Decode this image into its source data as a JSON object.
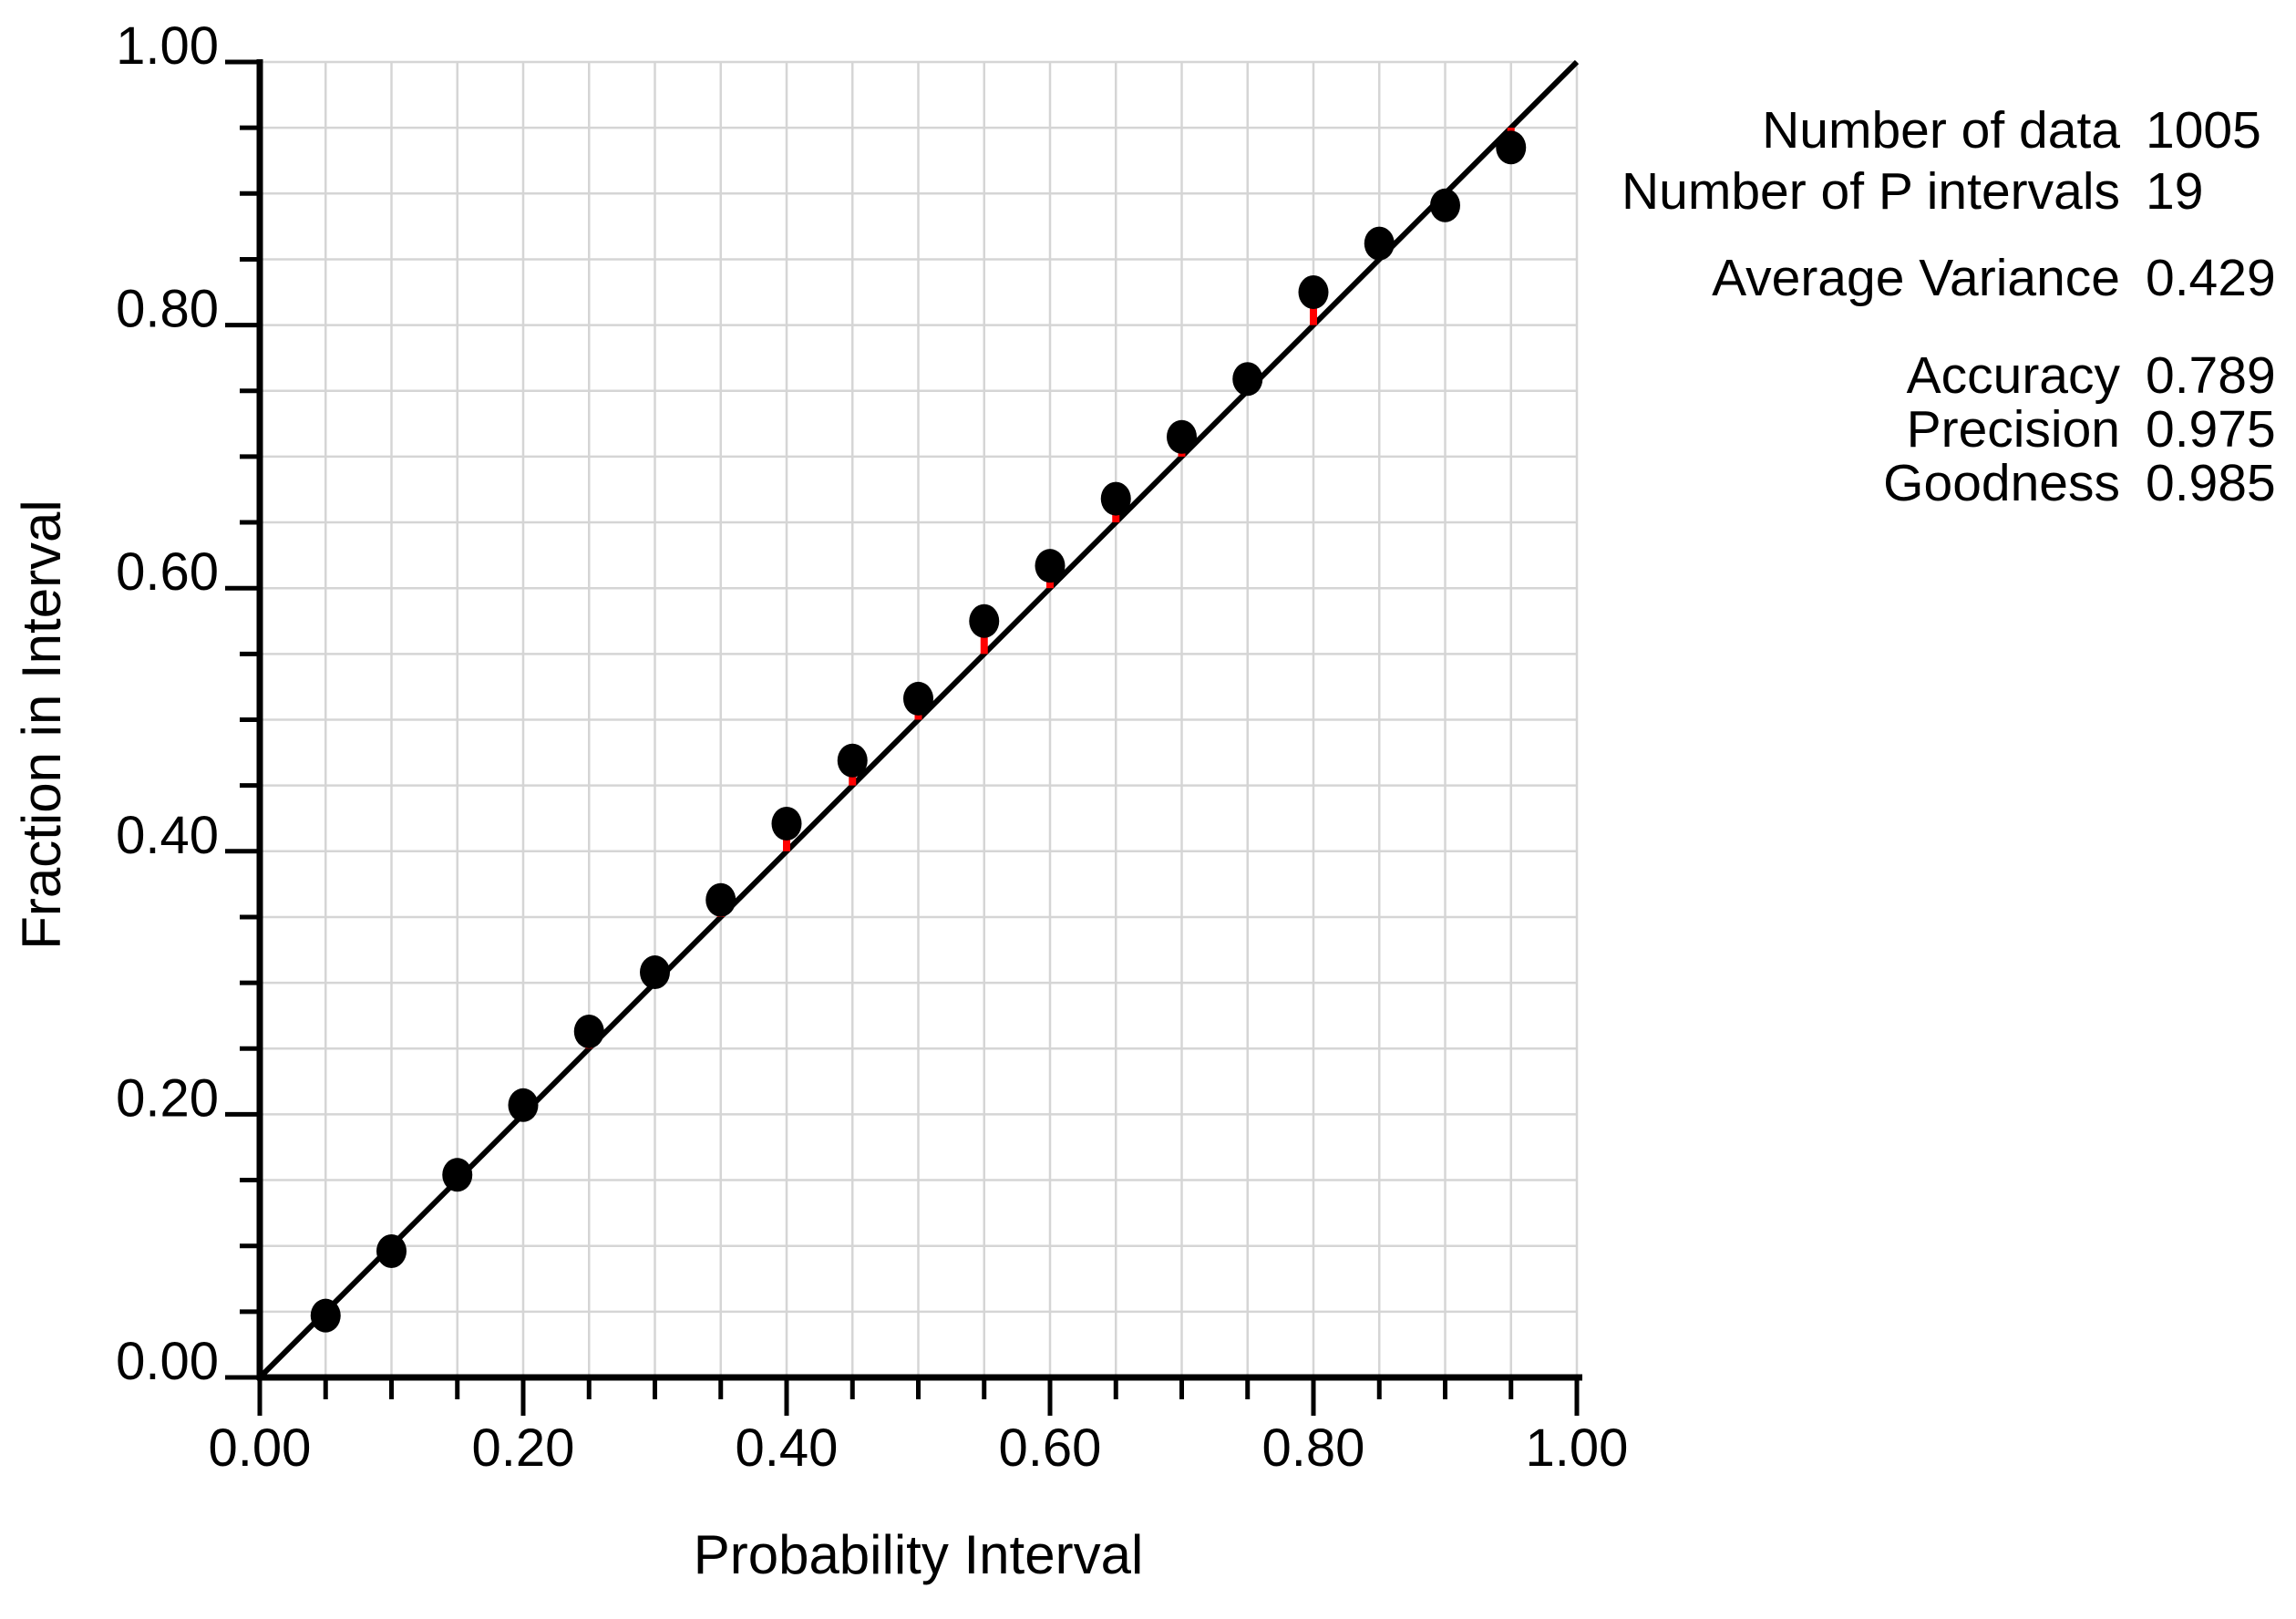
{
  "chart_data": {
    "type": "scatter",
    "title": "",
    "xlabel": "Probability Interval",
    "ylabel": "Fraction in Interval",
    "xlim": [
      0.0,
      1.0
    ],
    "ylim": [
      0.0,
      1.0
    ],
    "grid": true,
    "grid_step": 0.05,
    "minor_tick_step": 0.05,
    "major_tick_step": 0.2,
    "x_tick_values": [
      0.0,
      0.2,
      0.4,
      0.6,
      0.8,
      1.0
    ],
    "x_tick_labels": [
      "0.00",
      "0.20",
      "0.40",
      "0.60",
      "0.80",
      "1.00"
    ],
    "y_tick_values": [
      0.0,
      0.2,
      0.4,
      0.6,
      0.8,
      1.0
    ],
    "y_tick_labels": [
      "0.00",
      "0.20",
      "0.40",
      "0.60",
      "0.80",
      "1.00"
    ],
    "reference_line": {
      "from": [
        0.0,
        0.0
      ],
      "to": [
        1.0,
        1.0
      ]
    },
    "series": [
      {
        "name": "fraction-in-interval",
        "marker": "filled-circle",
        "x": [
          0.05,
          0.1,
          0.15,
          0.2,
          0.25,
          0.3,
          0.35,
          0.4,
          0.45,
          0.5,
          0.55,
          0.6,
          0.65,
          0.7,
          0.75,
          0.8,
          0.85,
          0.9,
          0.95
        ],
        "y": [
          0.047,
          0.096,
          0.154,
          0.207,
          0.263,
          0.308,
          0.363,
          0.421,
          0.469,
          0.516,
          0.575,
          0.617,
          0.668,
          0.715,
          0.759,
          0.825,
          0.862,
          0.891,
          0.935
        ]
      }
    ]
  },
  "colors": {
    "axis": "#000000",
    "grid": "#d5d5d5",
    "marker": "#000000",
    "reference_line": "#000000",
    "residual": "#ff0000",
    "text": "#000000",
    "background": "#ffffff"
  },
  "stats": {
    "rows": [
      {
        "label": "Number of data",
        "value": "1005"
      },
      {
        "label": "Number of P intervals",
        "value": "19"
      },
      {
        "label": "Average Variance",
        "value": "0.429"
      },
      {
        "label": "Accuracy",
        "value": "0.789"
      },
      {
        "label": "Precision",
        "value": "0.975"
      },
      {
        "label": "Goodness",
        "value": "0.985"
      }
    ]
  },
  "axis_titles": {
    "x": "Probability Interval",
    "y": "Fraction in Interval"
  }
}
